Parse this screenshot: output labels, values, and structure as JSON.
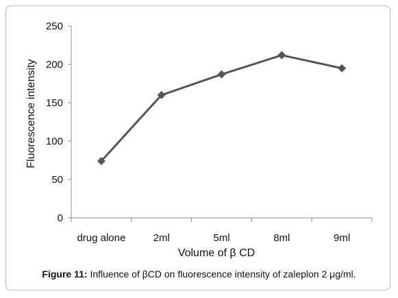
{
  "chart_data": {
    "type": "line",
    "categories": [
      "drug alone",
      "2ml",
      "5ml",
      "8ml",
      "9ml"
    ],
    "series": [
      {
        "values": [
          74,
          160,
          187,
          212,
          195
        ]
      }
    ],
    "xlabel": "Volume of β CD",
    "ylabel": "Fluorescence intensity",
    "ylim": [
      0,
      250
    ],
    "yticks": [
      0,
      50,
      100,
      150,
      200,
      250
    ],
    "grid": false,
    "marker": "diamond",
    "colors": {
      "series": "#555555",
      "axis": "#8c8c8c",
      "text": "#111111"
    }
  },
  "caption": {
    "label": "Figure 11:",
    "text": " Influence of βCD on fluorescence intensity of zaleplon 2 μg/ml."
  }
}
